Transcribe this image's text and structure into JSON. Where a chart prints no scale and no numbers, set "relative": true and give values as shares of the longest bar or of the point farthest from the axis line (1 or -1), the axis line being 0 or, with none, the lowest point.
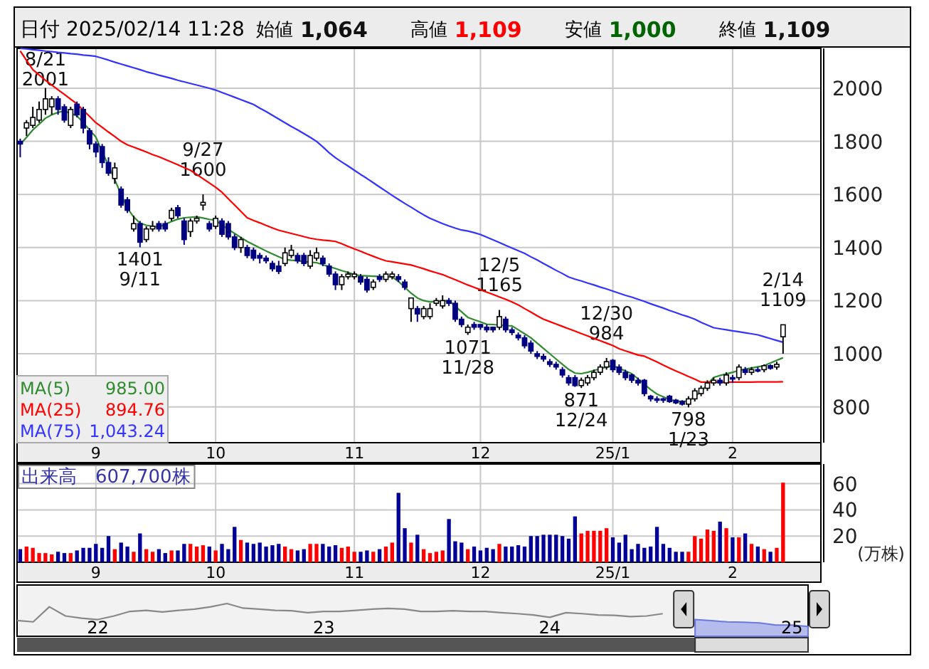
{
  "chart_data": [
    {
      "type": "candlestick",
      "title": "日付 2025/02/14 11:28",
      "categories": [
        null,
        null,
        null,
        null,
        null,
        null,
        null,
        null,
        null,
        null,
        null,
        null,
        "9",
        null,
        null,
        null,
        null,
        null,
        null,
        null,
        null,
        null,
        null,
        null,
        null,
        null,
        null,
        null,
        null,
        null,
        null,
        "10",
        null,
        null,
        null,
        null,
        null,
        null,
        null,
        null,
        null,
        null,
        null,
        null,
        null,
        null,
        null,
        null,
        null,
        null,
        null,
        null,
        null,
        "11",
        null,
        null,
        null,
        null,
        null,
        null,
        null,
        null,
        null,
        null,
        null,
        null,
        null,
        null,
        null,
        null,
        null,
        null,
        null,
        "12",
        null,
        null,
        null,
        null,
        null,
        null,
        null,
        null,
        null,
        null,
        null,
        null,
        null,
        null,
        null,
        null,
        null,
        null,
        null,
        null,
        "25/1",
        null,
        null,
        null,
        null,
        null,
        null,
        null,
        null,
        null,
        null,
        null,
        null,
        null,
        null,
        null,
        null,
        null,
        null,
        "2",
        null,
        null,
        null,
        null,
        null,
        null,
        null,
        null
      ],
      "ohlc": [
        [
          1800,
          1810,
          1740,
          1790
        ],
        [
          1850,
          1880,
          1820,
          1870
        ],
        [
          1860,
          1930,
          1850,
          1890
        ],
        [
          1880,
          1950,
          1870,
          1920
        ],
        [
          1920,
          2001,
          1900,
          1960
        ],
        [
          1930,
          1970,
          1900,
          1960
        ],
        [
          1960,
          1970,
          1900,
          1920
        ],
        [
          1930,
          1940,
          1870,
          1880
        ],
        [
          1860,
          1930,
          1850,
          1920
        ],
        [
          1940,
          1950,
          1890,
          1900
        ],
        [
          1920,
          1930,
          1830,
          1850
        ],
        [
          1840,
          1850,
          1770,
          1790
        ],
        [
          1790,
          1800,
          1740,
          1760
        ],
        [
          1780,
          1790,
          1700,
          1720
        ],
        [
          1720,
          1740,
          1670,
          1680
        ],
        [
          1660,
          1720,
          1640,
          1700
        ],
        [
          1620,
          1630,
          1550,
          1560
        ],
        [
          1580,
          1590,
          1530,
          1540
        ],
        [
          1470,
          1520,
          1460,
          1490
        ],
        [
          1490,
          1500,
          1401,
          1420
        ],
        [
          1430,
          1480,
          1420,
          1470
        ],
        [
          1470,
          1500,
          1460,
          1480
        ],
        [
          1490,
          1500,
          1460,
          1470
        ],
        [
          1490,
          1500,
          1460,
          1470
        ],
        [
          1510,
          1550,
          1500,
          1540
        ],
        [
          1550,
          1560,
          1510,
          1520
        ],
        [
          1500,
          1510,
          1410,
          1430
        ],
        [
          1460,
          1510,
          1440,
          1500
        ],
        [
          1500,
          1520,
          1490,
          1510
        ],
        [
          1560,
          1600,
          1540,
          1570
        ],
        [
          1490,
          1500,
          1460,
          1470
        ],
        [
          1480,
          1520,
          1470,
          1510
        ],
        [
          1500,
          1510,
          1440,
          1450
        ],
        [
          1490,
          1500,
          1430,
          1440
        ],
        [
          1440,
          1450,
          1390,
          1400
        ],
        [
          1400,
          1440,
          1380,
          1430
        ],
        [
          1400,
          1410,
          1360,
          1370
        ],
        [
          1390,
          1400,
          1350,
          1360
        ],
        [
          1370,
          1380,
          1340,
          1360
        ],
        [
          1360,
          1370,
          1340,
          1350
        ],
        [
          1340,
          1350,
          1310,
          1320
        ],
        [
          1330,
          1350,
          1300,
          1310
        ],
        [
          1340,
          1400,
          1330,
          1380
        ],
        [
          1370,
          1410,
          1360,
          1390
        ],
        [
          1370,
          1380,
          1340,
          1350
        ],
        [
          1370,
          1380,
          1330,
          1340
        ],
        [
          1330,
          1390,
          1320,
          1370
        ],
        [
          1360,
          1400,
          1350,
          1380
        ],
        [
          1360,
          1370,
          1330,
          1340
        ],
        [
          1330,
          1340,
          1290,
          1300
        ],
        [
          1300,
          1310,
          1240,
          1260
        ],
        [
          1260,
          1300,
          1240,
          1290
        ],
        [
          1290,
          1310,
          1280,
          1300
        ],
        [
          1290,
          1310,
          1280,
          1300
        ],
        [
          1290,
          1300,
          1260,
          1270
        ],
        [
          1280,
          1290,
          1230,
          1240
        ],
        [
          1250,
          1280,
          1240,
          1270
        ],
        [
          1290,
          1300,
          1270,
          1280
        ],
        [
          1280,
          1310,
          1270,
          1300
        ],
        [
          1290,
          1310,
          1280,
          1300
        ],
        [
          1290,
          1300,
          1270,
          1280
        ],
        [
          1270,
          1280,
          1240,
          1250
        ],
        [
          1170,
          1210,
          1120,
          1210
        ],
        [
          1170,
          1180,
          1120,
          1150
        ],
        [
          1140,
          1180,
          1130,
          1170
        ],
        [
          1140,
          1190,
          1130,
          1170
        ],
        [
          1190,
          1210,
          1180,
          1200
        ],
        [
          1180,
          1220,
          1170,
          1200
        ],
        [
          1200,
          1210,
          1180,
          1190
        ],
        [
          1190,
          1200,
          1120,
          1130
        ],
        [
          1130,
          1140,
          1100,
          1110
        ],
        [
          1080,
          1110,
          1071,
          1100
        ],
        [
          1110,
          1120,
          1090,
          1100
        ],
        [
          1110,
          1110,
          1090,
          1100
        ],
        [
          1100,
          1110,
          1080,
          1090
        ],
        [
          1100,
          1100,
          1080,
          1090
        ],
        [
          1100,
          1165,
          1090,
          1140
        ],
        [
          1130,
          1140,
          1080,
          1090
        ],
        [
          1090,
          1100,
          1070,
          1080
        ],
        [
          1070,
          1080,
          1050,
          1060
        ],
        [
          1060,
          1070,
          1020,
          1030
        ],
        [
          1040,
          1050,
          1000,
          1010
        ],
        [
          1000,
          1010,
          980,
          990
        ],
        [
          990,
          1000,
          970,
          980
        ],
        [
          970,
          980,
          950,
          960
        ],
        [
          960,
          970,
          940,
          950
        ],
        [
          940,
          950,
          910,
          920
        ],
        [
          910,
          920,
          880,
          890
        ],
        [
          910,
          920,
          875,
          880
        ],
        [
          880,
          910,
          871,
          900
        ],
        [
          890,
          920,
          880,
          910
        ],
        [
          910,
          940,
          900,
          930
        ],
        [
          930,
          960,
          920,
          950
        ],
        [
          950,
          984,
          940,
          970
        ],
        [
          975,
          980,
          930,
          940
        ],
        [
          950,
          960,
          920,
          930
        ],
        [
          930,
          940,
          900,
          910
        ],
        [
          920,
          925,
          890,
          900
        ],
        [
          900,
          910,
          880,
          890
        ],
        [
          900,
          905,
          840,
          850
        ],
        [
          840,
          845,
          820,
          830
        ],
        [
          830,
          840,
          815,
          825
        ],
        [
          830,
          835,
          815,
          825
        ],
        [
          840,
          845,
          815,
          820
        ],
        [
          825,
          830,
          810,
          815
        ],
        [
          820,
          825,
          805,
          810
        ],
        [
          810,
          840,
          798,
          830
        ],
        [
          830,
          870,
          820,
          860
        ],
        [
          850,
          880,
          840,
          870
        ],
        [
          870,
          900,
          860,
          890
        ],
        [
          890,
          910,
          880,
          900
        ],
        [
          900,
          910,
          880,
          890
        ],
        [
          890,
          930,
          880,
          920
        ],
        [
          910,
          920,
          890,
          905
        ],
        [
          910,
          960,
          900,
          950
        ],
        [
          940,
          950,
          920,
          930
        ],
        [
          930,
          950,
          920,
          940
        ],
        [
          940,
          950,
          930,
          935
        ],
        [
          940,
          960,
          930,
          955
        ],
        [
          955,
          960,
          940,
          945
        ],
        [
          950,
          970,
          940,
          960
        ],
        [
          1064,
          1109,
          1000,
          1109
        ]
      ],
      "colors": [
        "#000080",
        "#ffffff",
        "#ffffff",
        "#ffffff",
        "#ffffff",
        "#ffffff",
        "#000080",
        "#000080",
        "#ffffff",
        "#000080",
        "#000080",
        "#000080",
        "#000080",
        "#000080",
        "#000080",
        "#ffffff",
        "#000080",
        "#000080",
        "#ffffff",
        "#000080",
        "#ffffff",
        "#ffffff",
        "#000080",
        "#000080",
        "#ffffff",
        "#000080",
        "#000080",
        "#ffffff",
        "#ffffff",
        "#ffffff",
        "#000080",
        "#ffffff",
        "#000080",
        "#000080",
        "#000080",
        "#ffffff",
        "#000080",
        "#000080",
        "#000080",
        "#000080",
        "#000080",
        "#000080",
        "#ffffff",
        "#ffffff",
        "#000080",
        "#000080",
        "#ffffff",
        "#ffffff",
        "#000080",
        "#000080",
        "#000080",
        "#ffffff",
        "#ffffff",
        "#ffffff",
        "#000080",
        "#000080",
        "#ffffff",
        "#000080",
        "#ffffff",
        "#ffffff",
        "#000080",
        "#000080",
        "#ffffff",
        "#000080",
        "#ffffff",
        "#ffffff",
        "#ffffff",
        "#ffffff",
        "#000080",
        "#000080",
        "#000080",
        "#ffffff",
        "#000080",
        "#000080",
        "#000080",
        "#000080",
        "#ffffff",
        "#000080",
        "#000080",
        "#000080",
        "#000080",
        "#000080",
        "#000080",
        "#000080",
        "#000080",
        "#000080",
        "#000080",
        "#000080",
        "#000080",
        "#ffffff",
        "#ffffff",
        "#ffffff",
        "#ffffff",
        "#ffffff",
        "#000080",
        "#000080",
        "#000080",
        "#000080",
        "#000080",
        "#000080",
        "#000080",
        "#000080",
        "#000080",
        "#000080",
        "#000080",
        "#000080",
        "#ffffff",
        "#ffffff",
        "#ffffff",
        "#ffffff",
        "#ffffff",
        "#000080",
        "#ffffff",
        "#000080",
        "#ffffff",
        "#000080",
        "#ffffff",
        "#000080",
        "#ffffff",
        "#000080",
        "#ffffff",
        "#ffffff"
      ],
      "series": [
        {
          "type": "line",
          "name": "MA(5)",
          "color": "#2e8b2e",
          "values": [
            1789,
            1815,
            1843,
            1865,
            1887,
            1900,
            1909,
            1914,
            1905,
            1896,
            1870,
            1843,
            1816,
            1760,
            1710,
            1655,
            1600,
            1548,
            1515,
            1492,
            1484,
            1480,
            1477,
            1488,
            1498,
            1507,
            1512,
            1514,
            1516,
            1511,
            1506,
            1503,
            1485,
            1468,
            1453,
            1438,
            1423,
            1411,
            1399,
            1387,
            1376,
            1365,
            1355,
            1352,
            1350,
            1347,
            1345,
            1343,
            1335,
            1328,
            1321,
            1313,
            1306,
            1298,
            1294,
            1293,
            1292,
            1291,
            1290,
            1289,
            1272,
            1250,
            1228,
            1210,
            1200,
            1195,
            1197,
            1199,
            1200,
            1179,
            1158,
            1137,
            1128,
            1120,
            1111,
            1110,
            1108,
            1106,
            1105,
            1090,
            1075,
            1060,
            1040,
            1020,
            1000,
            980,
            960,
            941,
            927,
            925,
            930,
            937,
            943,
            950,
            955,
            945,
            935,
            925,
            905,
            885,
            865,
            848,
            838,
            828,
            821,
            821,
            821,
            839,
            857,
            884,
            911,
            918,
            924,
            930,
            937,
            942,
            946,
            951,
            955,
            965,
            975,
            985
          ]
        },
        {
          "type": "line",
          "name": "MA(25)",
          "color": "#ff0000",
          "values": [
            2140,
            2105,
            2070,
            2050,
            2030,
            2012,
            1994,
            1977,
            1959,
            1941,
            1917,
            1894,
            1870,
            1853,
            1835,
            1818,
            1800,
            1787,
            1778,
            1769,
            1760,
            1750,
            1742,
            1732,
            1722,
            1712,
            1701,
            1691,
            1675,
            1659,
            1643,
            1627,
            1608,
            1584,
            1560,
            1536,
            1512,
            1502,
            1493,
            1483,
            1474,
            1465,
            1459,
            1453,
            1447,
            1441,
            1435,
            1431,
            1428,
            1426,
            1423,
            1414,
            1404,
            1395,
            1386,
            1376,
            1367,
            1358,
            1350,
            1346,
            1342,
            1338,
            1334,
            1327,
            1320,
            1312,
            1305,
            1298,
            1288,
            1279,
            1269,
            1259,
            1250,
            1241,
            1232,
            1223,
            1214,
            1205,
            1195,
            1184,
            1170,
            1157,
            1143,
            1130,
            1121,
            1112,
            1103,
            1094,
            1085,
            1076,
            1067,
            1058,
            1049,
            1040,
            1031,
            1019,
            1011,
            1003,
            995,
            991,
            980,
            969,
            957,
            946,
            935,
            925,
            914,
            904,
            893,
            893,
            893,
            893,
            893,
            893,
            893,
            893,
            893,
            894,
            894,
            894,
            894,
            894.76
          ]
        },
        {
          "type": "line",
          "name": "MA(75)",
          "color": "#3333ff",
          "values": [
            2150,
            2148,
            2145,
            2143,
            2140,
            2138,
            2135,
            2133,
            2130,
            2128,
            2125,
            2123,
            2120,
            2113,
            2106,
            2098,
            2091,
            2084,
            2077,
            2070,
            2062,
            2056,
            2049,
            2043,
            2037,
            2030,
            2024,
            2018,
            2012,
            2006,
            2000,
            1993,
            1984,
            1975,
            1966,
            1957,
            1948,
            1939,
            1925,
            1912,
            1898,
            1884,
            1870,
            1856,
            1843,
            1829,
            1815,
            1800,
            1779,
            1757,
            1738,
            1722,
            1707,
            1691,
            1675,
            1660,
            1644,
            1628,
            1612,
            1596,
            1581,
            1566,
            1552,
            1537,
            1523,
            1510,
            1500,
            1490,
            1481,
            1473,
            1466,
            1462,
            1456,
            1449,
            1439,
            1429,
            1419,
            1408,
            1398,
            1388,
            1378,
            1365,
            1353,
            1340,
            1327,
            1314,
            1302,
            1289,
            1281,
            1274,
            1266,
            1259,
            1251,
            1244,
            1236,
            1228,
            1220,
            1213,
            1205,
            1197,
            1188,
            1180,
            1172,
            1163,
            1155,
            1146,
            1139,
            1130,
            1118,
            1108,
            1098,
            1094,
            1090,
            1086,
            1083,
            1079,
            1075,
            1071,
            1064,
            1057,
            1050,
            1043.24
          ]
        }
      ],
      "ylim": [
        665,
        2150
      ],
      "yticks": [
        800,
        1000,
        1200,
        1400,
        1600,
        1800,
        2000
      ],
      "grid": true,
      "legend": "bottom left",
      "annotations": [
        "始値 1,064",
        "高値 1,109",
        "安値 1,000",
        "終値 1,109",
        "985.00",
        "894.76",
        "1,043.24",
        {
          "text": "8/21\n2001",
          "y": 2001
        },
        {
          "text": "9/27\n1600",
          "y": 1600
        },
        {
          "text": "12/5\n1165",
          "y": 1165
        },
        {
          "text": "12/30\n984",
          "y": 984
        },
        {
          "text": "2/14\n1109",
          "y": 1109
        },
        {
          "text": "1401\n9/11",
          "y": 1401
        },
        {
          "text": "1071\n11/28",
          "y": 1071
        },
        {
          "text": "871\n12/24",
          "y": 871
        },
        {
          "text": "798\n1/23",
          "y": 798
        }
      ]
    },
    {
      "type": "bar",
      "title": "出来高　607,700株",
      "ylabel": "(万株)",
      "categories": [
        null,
        null,
        null,
        null,
        null,
        null,
        null,
        null,
        null,
        null,
        null,
        null,
        "9",
        null,
        null,
        null,
        null,
        null,
        null,
        null,
        null,
        null,
        null,
        null,
        null,
        null,
        null,
        null,
        null,
        null,
        null,
        "10",
        null,
        null,
        null,
        null,
        null,
        null,
        null,
        null,
        null,
        null,
        null,
        null,
        null,
        null,
        null,
        null,
        null,
        null,
        null,
        null,
        null,
        "11",
        null,
        null,
        null,
        null,
        null,
        null,
        null,
        null,
        null,
        null,
        null,
        null,
        null,
        null,
        null,
        null,
        null,
        null,
        null,
        "12",
        null,
        null,
        null,
        null,
        null,
        null,
        null,
        null,
        null,
        null,
        null,
        null,
        null,
        null,
        null,
        null,
        null,
        null,
        null,
        null,
        "25/1",
        null,
        null,
        null,
        null,
        null,
        null,
        null,
        null,
        null,
        null,
        null,
        null,
        null,
        null,
        null,
        null,
        null,
        null,
        "2",
        null,
        null,
        null,
        null,
        null,
        null,
        null,
        null
      ],
      "values": [
        10,
        12,
        11,
        7,
        7,
        6,
        8,
        7,
        7,
        9,
        11,
        11,
        14,
        11,
        20,
        10,
        15,
        12,
        8,
        22,
        10,
        8,
        10,
        7,
        9,
        9,
        14,
        14,
        12,
        13,
        12,
        9,
        14,
        10,
        27,
        17,
        15,
        14,
        15,
        12,
        13,
        14,
        12,
        10,
        9,
        10,
        14,
        14,
        14,
        12,
        13,
        11,
        12,
        8,
        8,
        9,
        8,
        10,
        12,
        15,
        53,
        26,
        15,
        21,
        10,
        7,
        8,
        9,
        33,
        16,
        15,
        10,
        12,
        9,
        11,
        10,
        14,
        12,
        12,
        13,
        12,
        20,
        20,
        21,
        21,
        21,
        20,
        18,
        35,
        22,
        24,
        24,
        24,
        26,
        19,
        15,
        21,
        10,
        14,
        11,
        12,
        27,
        14,
        11,
        8,
        8,
        8,
        20,
        18,
        25,
        24,
        31,
        26,
        19,
        19,
        22,
        14,
        12,
        10,
        8,
        11,
        60.77
      ],
      "colors": [
        "#000099",
        "#ff0000",
        "#ff0000",
        "#ff0000",
        "#ff0000",
        "#ff0000",
        "#000099",
        "#000099",
        "#ff0000",
        "#000099",
        "#000099",
        "#000099",
        "#000099",
        "#000099",
        "#000099",
        "#ff0000",
        "#000099",
        "#000099",
        "#ff0000",
        "#000099",
        "#ff0000",
        "#ff0000",
        "#000099",
        "#000099",
        "#ff0000",
        "#000099",
        "#000099",
        "#ff0000",
        "#ff0000",
        "#ff0000",
        "#000099",
        "#ff0000",
        "#000099",
        "#000099",
        "#000099",
        "#ff0000",
        "#000099",
        "#000099",
        "#000099",
        "#000099",
        "#000099",
        "#000099",
        "#ff0000",
        "#ff0000",
        "#000099",
        "#000099",
        "#ff0000",
        "#ff0000",
        "#000099",
        "#000099",
        "#000099",
        "#ff0000",
        "#ff0000",
        "#ff0000",
        "#000099",
        "#000099",
        "#ff0000",
        "#000099",
        "#ff0000",
        "#ff0000",
        "#000099",
        "#000099",
        "#ff0000",
        "#000099",
        "#ff0000",
        "#ff0000",
        "#ff0000",
        "#ff0000",
        "#000099",
        "#000099",
        "#000099",
        "#ff0000",
        "#000099",
        "#000099",
        "#000099",
        "#000099",
        "#ff0000",
        "#000099",
        "#000099",
        "#000099",
        "#000099",
        "#000099",
        "#000099",
        "#000099",
        "#000099",
        "#000099",
        "#000099",
        "#000099",
        "#000099",
        "#ff0000",
        "#ff0000",
        "#ff0000",
        "#ff0000",
        "#ff0000",
        "#000099",
        "#000099",
        "#000099",
        "#000099",
        "#000099",
        "#000099",
        "#000099",
        "#000099",
        "#000099",
        "#000099",
        "#000099",
        "#000099",
        "#ff0000",
        "#ff0000",
        "#ff0000",
        "#ff0000",
        "#ff0000",
        "#000099",
        "#ff0000",
        "#000099",
        "#ff0000",
        "#000099",
        "#ff0000",
        "#000099",
        "#ff0000",
        "#000099",
        "#ff0000",
        "#ff0000"
      ],
      "ylim": [
        0,
        75
      ],
      "yticks": [
        20,
        40,
        60
      ],
      "grid": true
    },
    {
      "type": "line",
      "relative": true,
      "categories": [
        null,
        null,
        null,
        null,
        null,
        "22",
        null,
        null,
        null,
        null,
        null,
        null,
        null,
        null,
        null,
        null,
        null,
        null,
        null,
        "23",
        null,
        null,
        null,
        null,
        null,
        null,
        null,
        null,
        null,
        null,
        null,
        null,
        null,
        "24",
        null,
        null,
        null,
        null,
        null,
        null,
        null,
        null,
        null,
        null,
        null,
        null,
        null,
        null,
        "25",
        null
      ],
      "series": [
        {
          "color": "#888888",
          "values": [
            0.48,
            0.44,
            0.9,
            0.62,
            0.55,
            0.51,
            0.62,
            0.76,
            0.79,
            0.74,
            0.79,
            0.83,
            0.9,
            1,
            0.86,
            0.83,
            0.79,
            0.78,
            0.72,
            0.76,
            0.76,
            0.79,
            0.83,
            0.85,
            0.83,
            0.76,
            0.76,
            0.78,
            0.76,
            0.76,
            0.72,
            0.69,
            0.65,
            0.58,
            0.72,
            0.69,
            0.65,
            0.64,
            0.6,
            0.62,
            0.69,
            null,
            null,
            null,
            null,
            null,
            null,
            null,
            null,
            null
          ]
        },
        {
          "type": "area",
          "color": "#6a78e0",
          "values": [
            null,
            null,
            null,
            null,
            null,
            null,
            null,
            null,
            null,
            null,
            null,
            null,
            null,
            null,
            null,
            null,
            null,
            null,
            null,
            null,
            null,
            null,
            null,
            null,
            null,
            null,
            null,
            null,
            null,
            null,
            null,
            null,
            null,
            null,
            null,
            null,
            null,
            null,
            null,
            null,
            null,
            null,
            0.51,
            0.48,
            0.44,
            0.43,
            0.41,
            0.34,
            0.34,
            0.3
          ]
        }
      ]
    }
  ]
}
